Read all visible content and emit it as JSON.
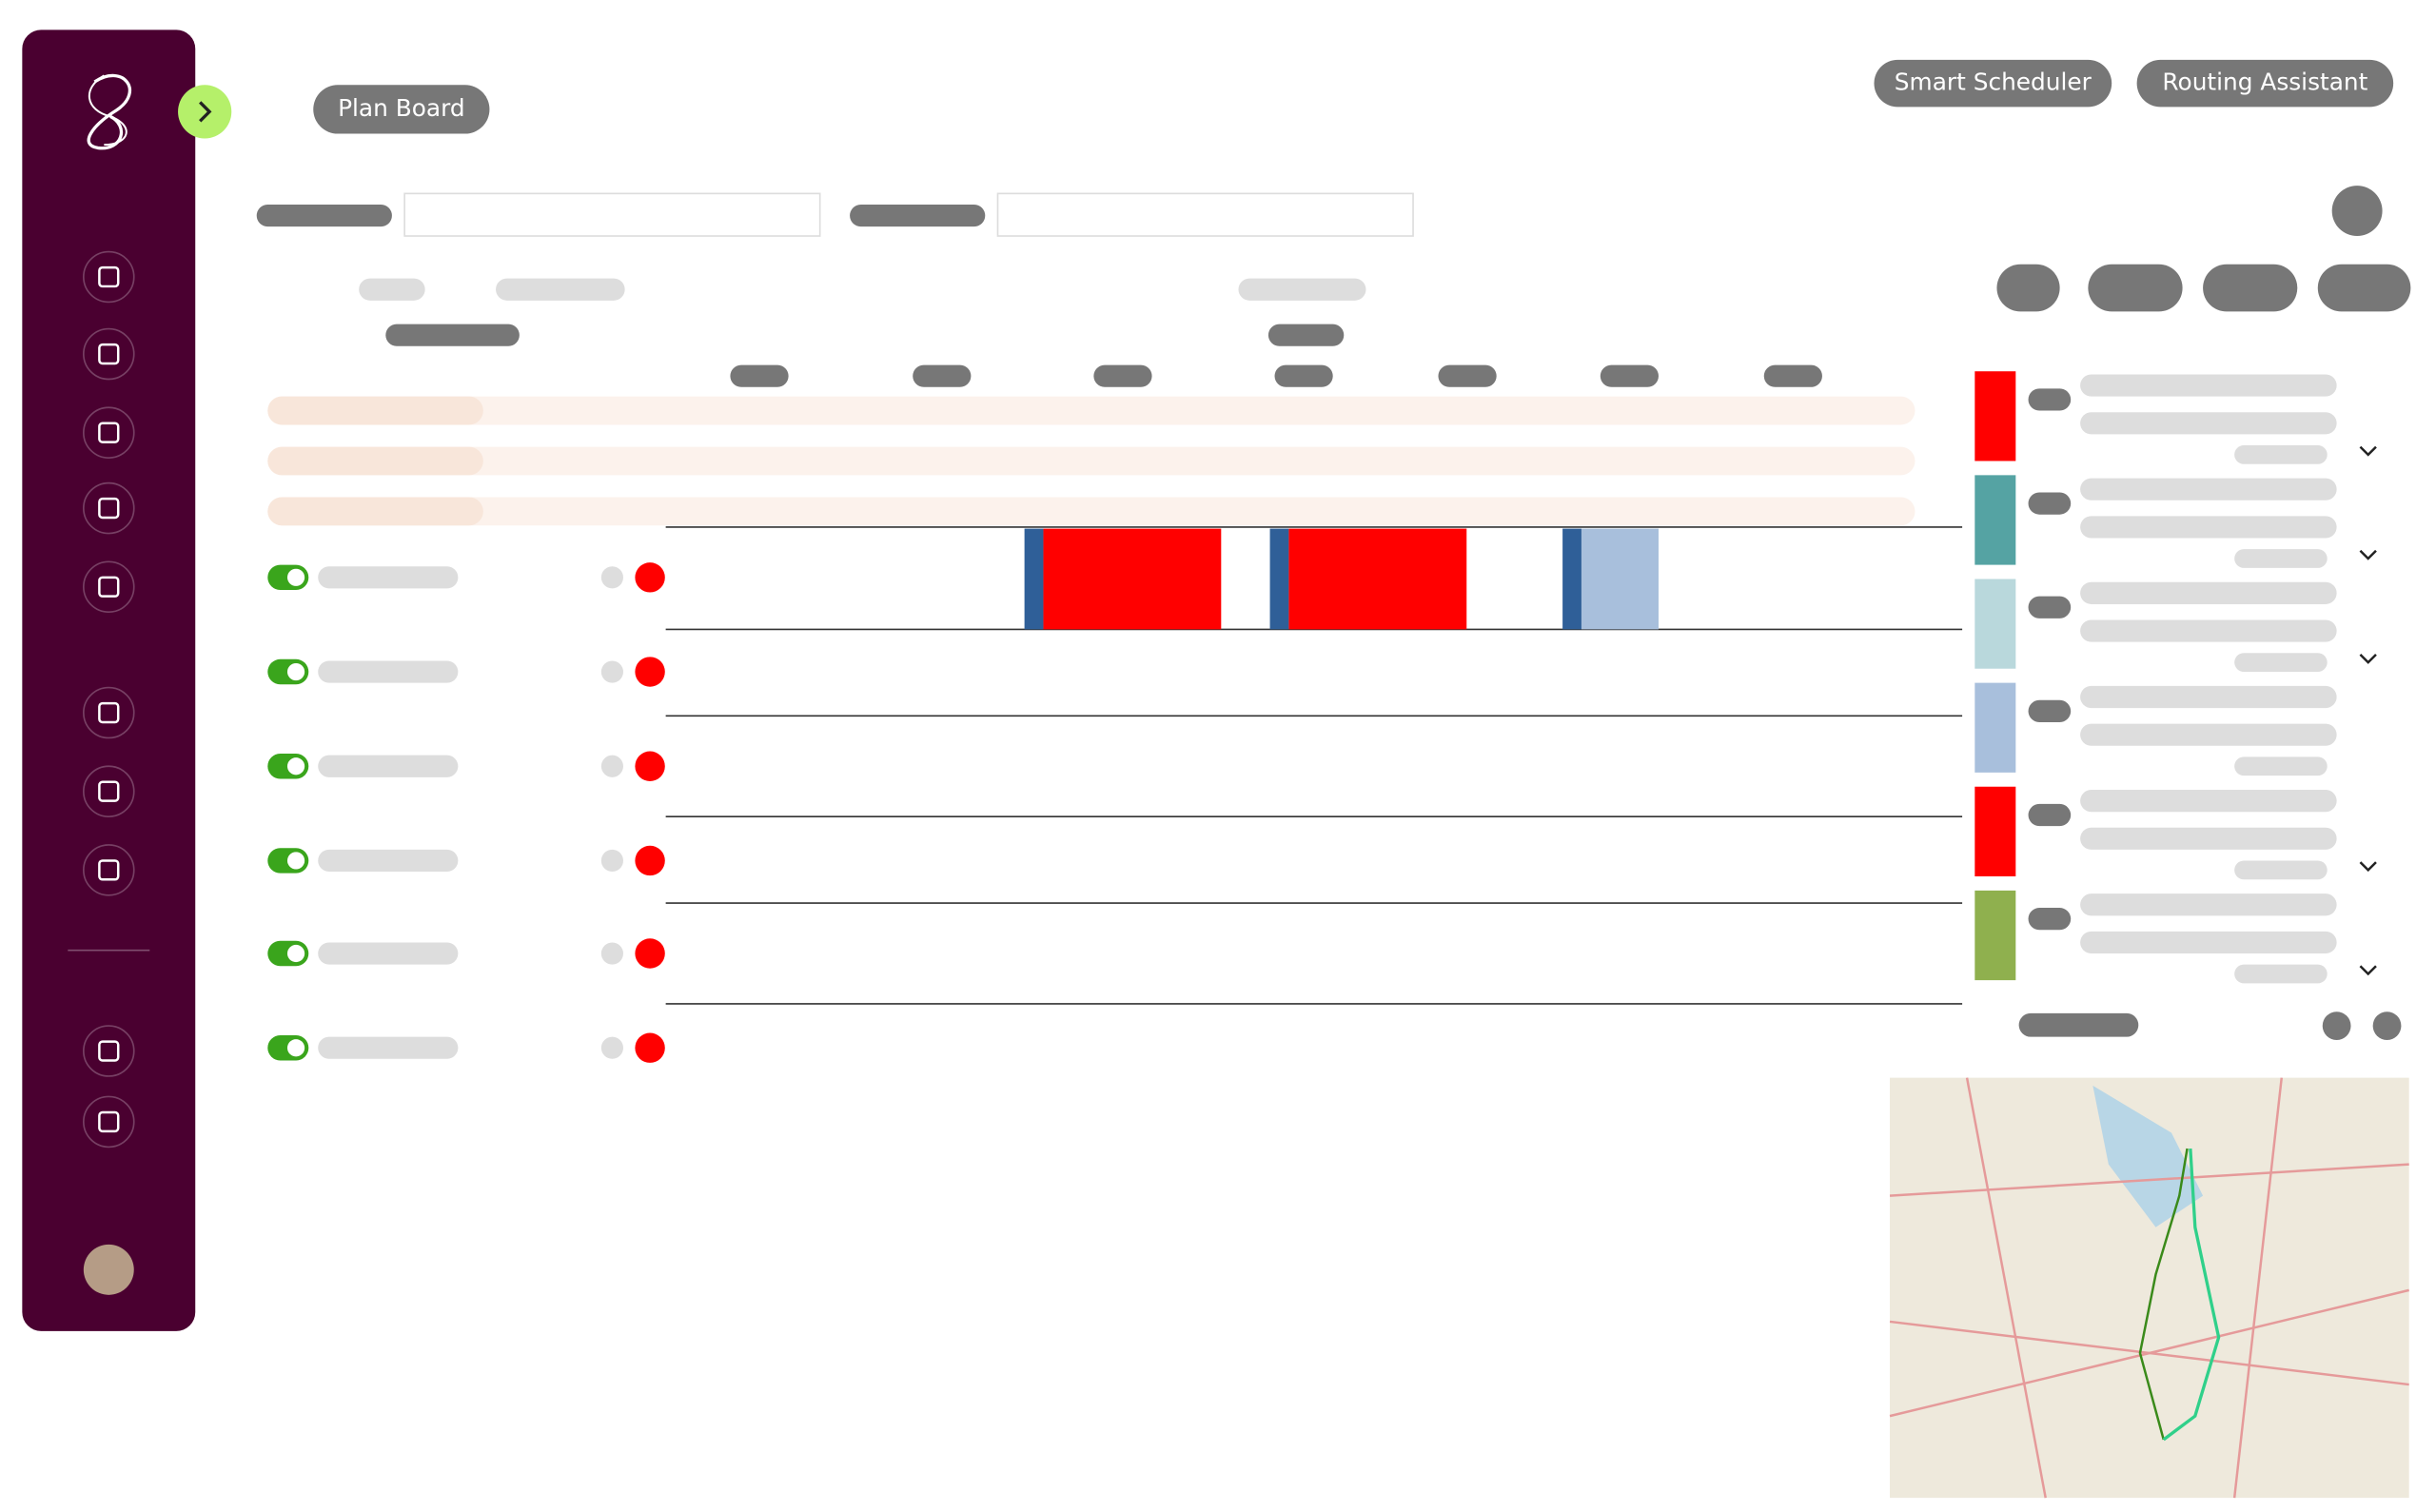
{
  "header": {
    "title": "Plan Board",
    "buttons": [
      "Smart Scheduler",
      "Routing Assistant"
    ]
  }
}
